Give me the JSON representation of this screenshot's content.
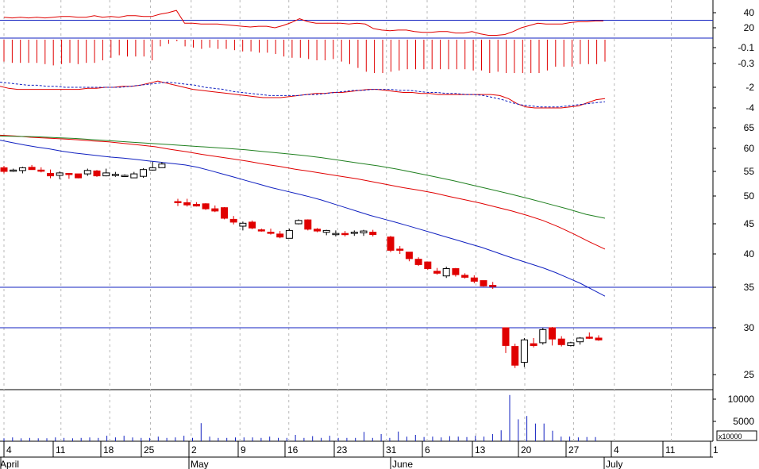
{
  "chart_data": [
    {
      "panel": "oscillator",
      "type": "line",
      "y_ticks": [
        "40",
        "20"
      ],
      "reference_level": 30,
      "series": [
        {
          "values": [
            34,
            33,
            34,
            33,
            34,
            33,
            34,
            35,
            35,
            34,
            34,
            36,
            34,
            35,
            34,
            36,
            36,
            35,
            35,
            38,
            40,
            43,
            26,
            26,
            25,
            25,
            25,
            24,
            23,
            22,
            21,
            22,
            22,
            20,
            23,
            27,
            32,
            28,
            26,
            26,
            26,
            26,
            25,
            26,
            25,
            19,
            17,
            16,
            17,
            17,
            15,
            14,
            14,
            15,
            15,
            13,
            13,
            15,
            12,
            10,
            10,
            11,
            15,
            20,
            23,
            26,
            25,
            25,
            25,
            27,
            28,
            28,
            29,
            29
          ],
          "color": "#e00000"
        }
      ]
    },
    {
      "panel": "histogram",
      "type": "bar",
      "y_ticks": [
        "-0.1",
        "-0.3"
      ],
      "values": [
        -0.16,
        -0.17,
        -0.17,
        -0.17,
        -0.17,
        -0.18,
        -0.19,
        -0.18,
        -0.17,
        -0.18,
        -0.17,
        -0.17,
        -0.15,
        -0.13,
        -0.11,
        -0.12,
        -0.12,
        -0.12,
        -0.15,
        -0.04,
        -0.02,
        0,
        -0.04,
        -0.05,
        -0.06,
        -0.05,
        -0.06,
        -0.06,
        -0.07,
        -0.08,
        -0.08,
        -0.09,
        -0.09,
        -0.1,
        -0.12,
        -0.13,
        -0.13,
        -0.14,
        -0.15,
        -0.15,
        -0.14,
        -0.16,
        -0.18,
        -0.21,
        -0.24,
        -0.25,
        -0.26,
        -0.24,
        -0.23,
        -0.22,
        -0.22,
        -0.22,
        -0.22,
        -0.22,
        -0.22,
        -0.22,
        -0.22,
        -0.23,
        -0.23,
        -0.25,
        -0.24,
        -0.26,
        -0.35,
        -0.44,
        -0.34,
        -0.27,
        -0.23,
        -0.2,
        -0.2,
        -0.2,
        -0.18,
        -0.18,
        -0.18,
        -0.16
      ],
      "color": "#e00000"
    },
    {
      "panel": "macd",
      "type": "line",
      "y_ticks": [
        "-2",
        "-4"
      ],
      "series": [
        {
          "values": [
            -1.9,
            -2.1,
            -2.2,
            -2.2,
            -2.2,
            -2.2,
            -2.2,
            -2.2,
            -2.2,
            -2.2,
            -2.1,
            -2.1,
            -2.0,
            -2.0,
            -1.9,
            -1.9,
            -1.8,
            -1.6,
            -1.4,
            -1.6,
            -1.8,
            -2.0,
            -2.2,
            -2.3,
            -2.4,
            -2.5,
            -2.6,
            -2.7,
            -2.8,
            -2.9,
            -3.0,
            -3.0,
            -3.0,
            -2.9,
            -2.8,
            -2.7,
            -2.6,
            -2.6,
            -2.5,
            -2.5,
            -2.4,
            -2.3,
            -2.2,
            -2.2,
            -2.3,
            -2.4,
            -2.5,
            -2.5,
            -2.6,
            -2.6,
            -2.7,
            -2.7,
            -2.7,
            -2.7,
            -2.7,
            -2.7,
            -2.7,
            -2.8,
            -3.1,
            -3.6,
            -3.9,
            -4.0,
            -4.0,
            -4.0,
            -4.0,
            -3.9,
            -3.8,
            -3.5,
            -3.2,
            -3.1
          ],
          "color": "#e00000",
          "dash": false
        },
        {
          "values": [
            -1.5,
            -1.6,
            -1.7,
            -1.8,
            -1.8,
            -1.9,
            -1.9,
            -2.0,
            -2.0,
            -2.0,
            -2.0,
            -2.0,
            -2.0,
            -2.0,
            -1.9,
            -1.8,
            -1.7,
            -1.6,
            -1.5,
            -1.6,
            -1.7,
            -1.8,
            -2.0,
            -2.1,
            -2.2,
            -2.4,
            -2.5,
            -2.6,
            -2.7,
            -2.8,
            -2.8,
            -2.8,
            -2.8,
            -2.7,
            -2.7,
            -2.6,
            -2.5,
            -2.4,
            -2.3,
            -2.3,
            -2.2,
            -2.2,
            -2.2,
            -2.3,
            -2.3,
            -2.4,
            -2.5,
            -2.5,
            -2.6,
            -2.6,
            -2.7,
            -2.7,
            -2.8,
            -3.0,
            -3.2,
            -3.5,
            -3.7,
            -3.8,
            -3.9,
            -3.9,
            -3.9,
            -3.8,
            -3.7,
            -3.6,
            -3.5,
            -3.4
          ],
          "color": "#1020c0",
          "dash": true
        }
      ]
    },
    {
      "panel": "price",
      "type": "candlestick",
      "y_ticks": [
        "65",
        "60",
        "55",
        "50",
        "45",
        "40",
        "35",
        "30",
        "25"
      ],
      "horizontal_lines": [
        35,
        30
      ],
      "ohlc": [
        [
          55.8,
          56.2,
          54.6,
          55.0
        ],
        [
          55.2,
          55.6,
          54.9,
          55.3
        ],
        [
          55.2,
          56.0,
          54.6,
          55.8
        ],
        [
          55.9,
          56.4,
          55.4,
          55.4
        ],
        [
          55.3,
          55.9,
          54.8,
          55.2
        ],
        [
          54.6,
          55.4,
          53.6,
          54.1
        ],
        [
          54.2,
          55.0,
          53.4,
          54.7
        ],
        [
          54.6,
          54.6,
          53.5,
          54.5
        ],
        [
          54.5,
          54.5,
          53.6,
          53.7
        ],
        [
          54.5,
          55.6,
          54.1,
          55.2
        ],
        [
          55.1,
          55.3,
          53.9,
          54.1
        ],
        [
          54.1,
          55.6,
          54.0,
          54.7
        ],
        [
          54.4,
          54.9,
          53.9,
          54.4
        ],
        [
          54.1,
          54.4,
          53.9,
          54.2
        ],
        [
          53.7,
          54.9,
          53.7,
          54.5
        ],
        [
          54.0,
          55.7,
          53.7,
          55.4
        ],
        [
          55.3,
          57.1,
          55.2,
          55.8
        ],
        [
          55.8,
          57.0,
          55.8,
          56.6
        ],
        [
          49.0,
          49.5,
          48.2,
          48.8
        ],
        [
          48.8,
          49.5,
          48.1,
          48.4
        ],
        [
          48.5,
          48.9,
          48.1,
          48.2
        ],
        [
          48.6,
          48.7,
          47.5,
          47.7
        ],
        [
          47.7,
          48.3,
          47.1,
          47.3
        ],
        [
          47.9,
          48.0,
          45.8,
          46.0
        ],
        [
          45.8,
          46.4,
          44.9,
          45.3
        ],
        [
          44.6,
          45.4,
          43.9,
          45.1
        ],
        [
          45.3,
          45.6,
          44.1,
          44.3
        ],
        [
          44.0,
          44.2,
          43.7,
          43.8
        ],
        [
          43.6,
          44.2,
          43.2,
          43.4
        ],
        [
          43.3,
          43.8,
          42.6,
          42.8
        ],
        [
          42.6,
          44.2,
          42.6,
          43.9
        ],
        [
          45.0,
          45.8,
          44.9,
          45.6
        ],
        [
          45.7,
          45.8,
          43.9,
          44.1
        ],
        [
          44.1,
          44.3,
          43.6,
          43.8
        ],
        [
          43.6,
          44.0,
          43.1,
          43.9
        ],
        [
          43.4,
          43.9,
          42.9,
          43.4
        ],
        [
          43.4,
          43.8,
          42.9,
          43.2
        ],
        [
          43.4,
          43.9,
          43.0,
          43.6
        ],
        [
          43.5,
          44.0,
          43.0,
          43.8
        ],
        [
          43.6,
          44.0,
          42.9,
          43.2
        ],
        [
          42.8,
          43.0,
          40.3,
          40.6
        ],
        [
          40.8,
          41.3,
          40.0,
          40.6
        ],
        [
          40.3,
          40.3,
          38.9,
          39.3
        ],
        [
          39.2,
          39.5,
          38.2,
          38.4
        ],
        [
          38.8,
          38.8,
          37.6,
          37.8
        ],
        [
          37.4,
          37.9,
          36.9,
          37.1
        ],
        [
          36.7,
          38.1,
          36.4,
          37.8
        ],
        [
          37.8,
          37.9,
          36.6,
          36.9
        ],
        [
          36.8,
          37.1,
          36.3,
          36.5
        ],
        [
          36.4,
          36.8,
          35.6,
          35.9
        ],
        [
          36.0,
          36.0,
          35.1,
          35.2
        ],
        [
          35.3,
          35.8,
          34.8,
          35.2
        ],
        [
          30.0,
          30.0,
          27.3,
          28.1
        ],
        [
          28.0,
          28.3,
          25.7,
          26.0
        ],
        [
          26.3,
          28.9,
          25.8,
          28.7
        ],
        [
          28.3,
          28.9,
          27.9,
          28.1
        ],
        [
          28.4,
          30.0,
          28.2,
          29.8
        ],
        [
          30.0,
          30.1,
          28.1,
          28.8
        ],
        [
          28.8,
          29.1,
          28.0,
          28.2
        ],
        [
          28.1,
          28.5,
          28.0,
          28.4
        ],
        [
          28.5,
          29.0,
          28.2,
          28.9
        ],
        [
          29.0,
          29.5,
          28.8,
          28.9
        ],
        [
          28.9,
          29.2,
          28.6,
          28.7
        ]
      ],
      "moving_averages": [
        {
          "color": "#1020c0",
          "values": [
            62.0,
            61.4,
            60.8,
            60.3,
            59.9,
            59.4,
            59.0,
            58.7,
            58.4,
            58.1,
            57.9,
            57.6,
            57.3,
            57.0,
            56.7,
            56.4,
            55.9,
            55.2,
            54.5,
            53.8,
            53.1,
            52.4,
            51.7,
            51.1,
            50.5,
            49.9,
            49.3,
            48.6,
            47.9,
            47.2,
            46.5,
            45.9,
            45.3,
            44.7,
            44.1,
            43.5,
            42.9,
            42.3,
            41.7,
            41.1,
            40.4,
            39.7,
            39.1,
            38.5,
            37.9,
            37.2,
            36.4,
            35.6,
            34.7,
            33.9
          ]
        },
        {
          "color": "#e00000",
          "values": [
            63.2,
            63.0,
            62.7,
            62.5,
            62.3,
            62.1,
            61.8,
            61.6,
            61.2,
            60.8,
            60.4,
            59.8,
            59.3,
            58.7,
            58.2,
            57.7,
            57.2,
            56.6,
            56.1,
            55.5,
            55.0,
            54.5,
            54.0,
            53.5,
            52.9,
            52.3,
            51.7,
            51.2,
            50.6,
            49.9,
            49.3,
            48.7,
            48.0,
            47.3,
            46.5,
            45.6,
            44.5,
            43.3,
            42.0,
            40.8
          ]
        },
        {
          "color": "#208020",
          "values": [
            63.0,
            62.9,
            62.8,
            62.6,
            62.4,
            62.1,
            61.8,
            61.5,
            61.2,
            60.9,
            60.6,
            60.3,
            60.0,
            59.7,
            59.3,
            58.9,
            58.5,
            58.0,
            57.4,
            56.8,
            56.2,
            55.5,
            54.7,
            53.9,
            53.1,
            52.2,
            51.3,
            50.4,
            49.5,
            48.6,
            47.7,
            46.7,
            46.0
          ]
        }
      ]
    },
    {
      "panel": "volume",
      "type": "bar",
      "y_ticks": [
        "10000",
        "5000"
      ],
      "multiplier_label": "x10000",
      "values": [
        700,
        900,
        700,
        800,
        700,
        700,
        900,
        800,
        700,
        800,
        900,
        800,
        1300,
        900,
        1300,
        900,
        800,
        800,
        1100,
        800,
        900,
        1300,
        800,
        4300,
        1100,
        800,
        800,
        900,
        900,
        900,
        800,
        1100,
        800,
        800,
        1500,
        800,
        1200,
        800,
        1300,
        800,
        800,
        800,
        2200,
        800,
        1700,
        800,
        2300,
        1100,
        1500,
        1000,
        1100,
        900,
        1200,
        1100,
        1000,
        1300,
        1100,
        1700,
        2600,
        11000,
        5200,
        6000,
        4200,
        4200,
        2500,
        1100,
        1100,
        900,
        1000,
        1000
      ],
      "color": "#1020c0"
    }
  ],
  "x_axis": {
    "day_labels": [
      "4",
      "11",
      "18",
      "25",
      "2",
      "9",
      "16",
      "23",
      "31",
      "6",
      "13",
      "20",
      "27",
      "4",
      "11",
      "1"
    ],
    "month_labels": [
      "April",
      "May",
      "June",
      "July"
    ]
  }
}
